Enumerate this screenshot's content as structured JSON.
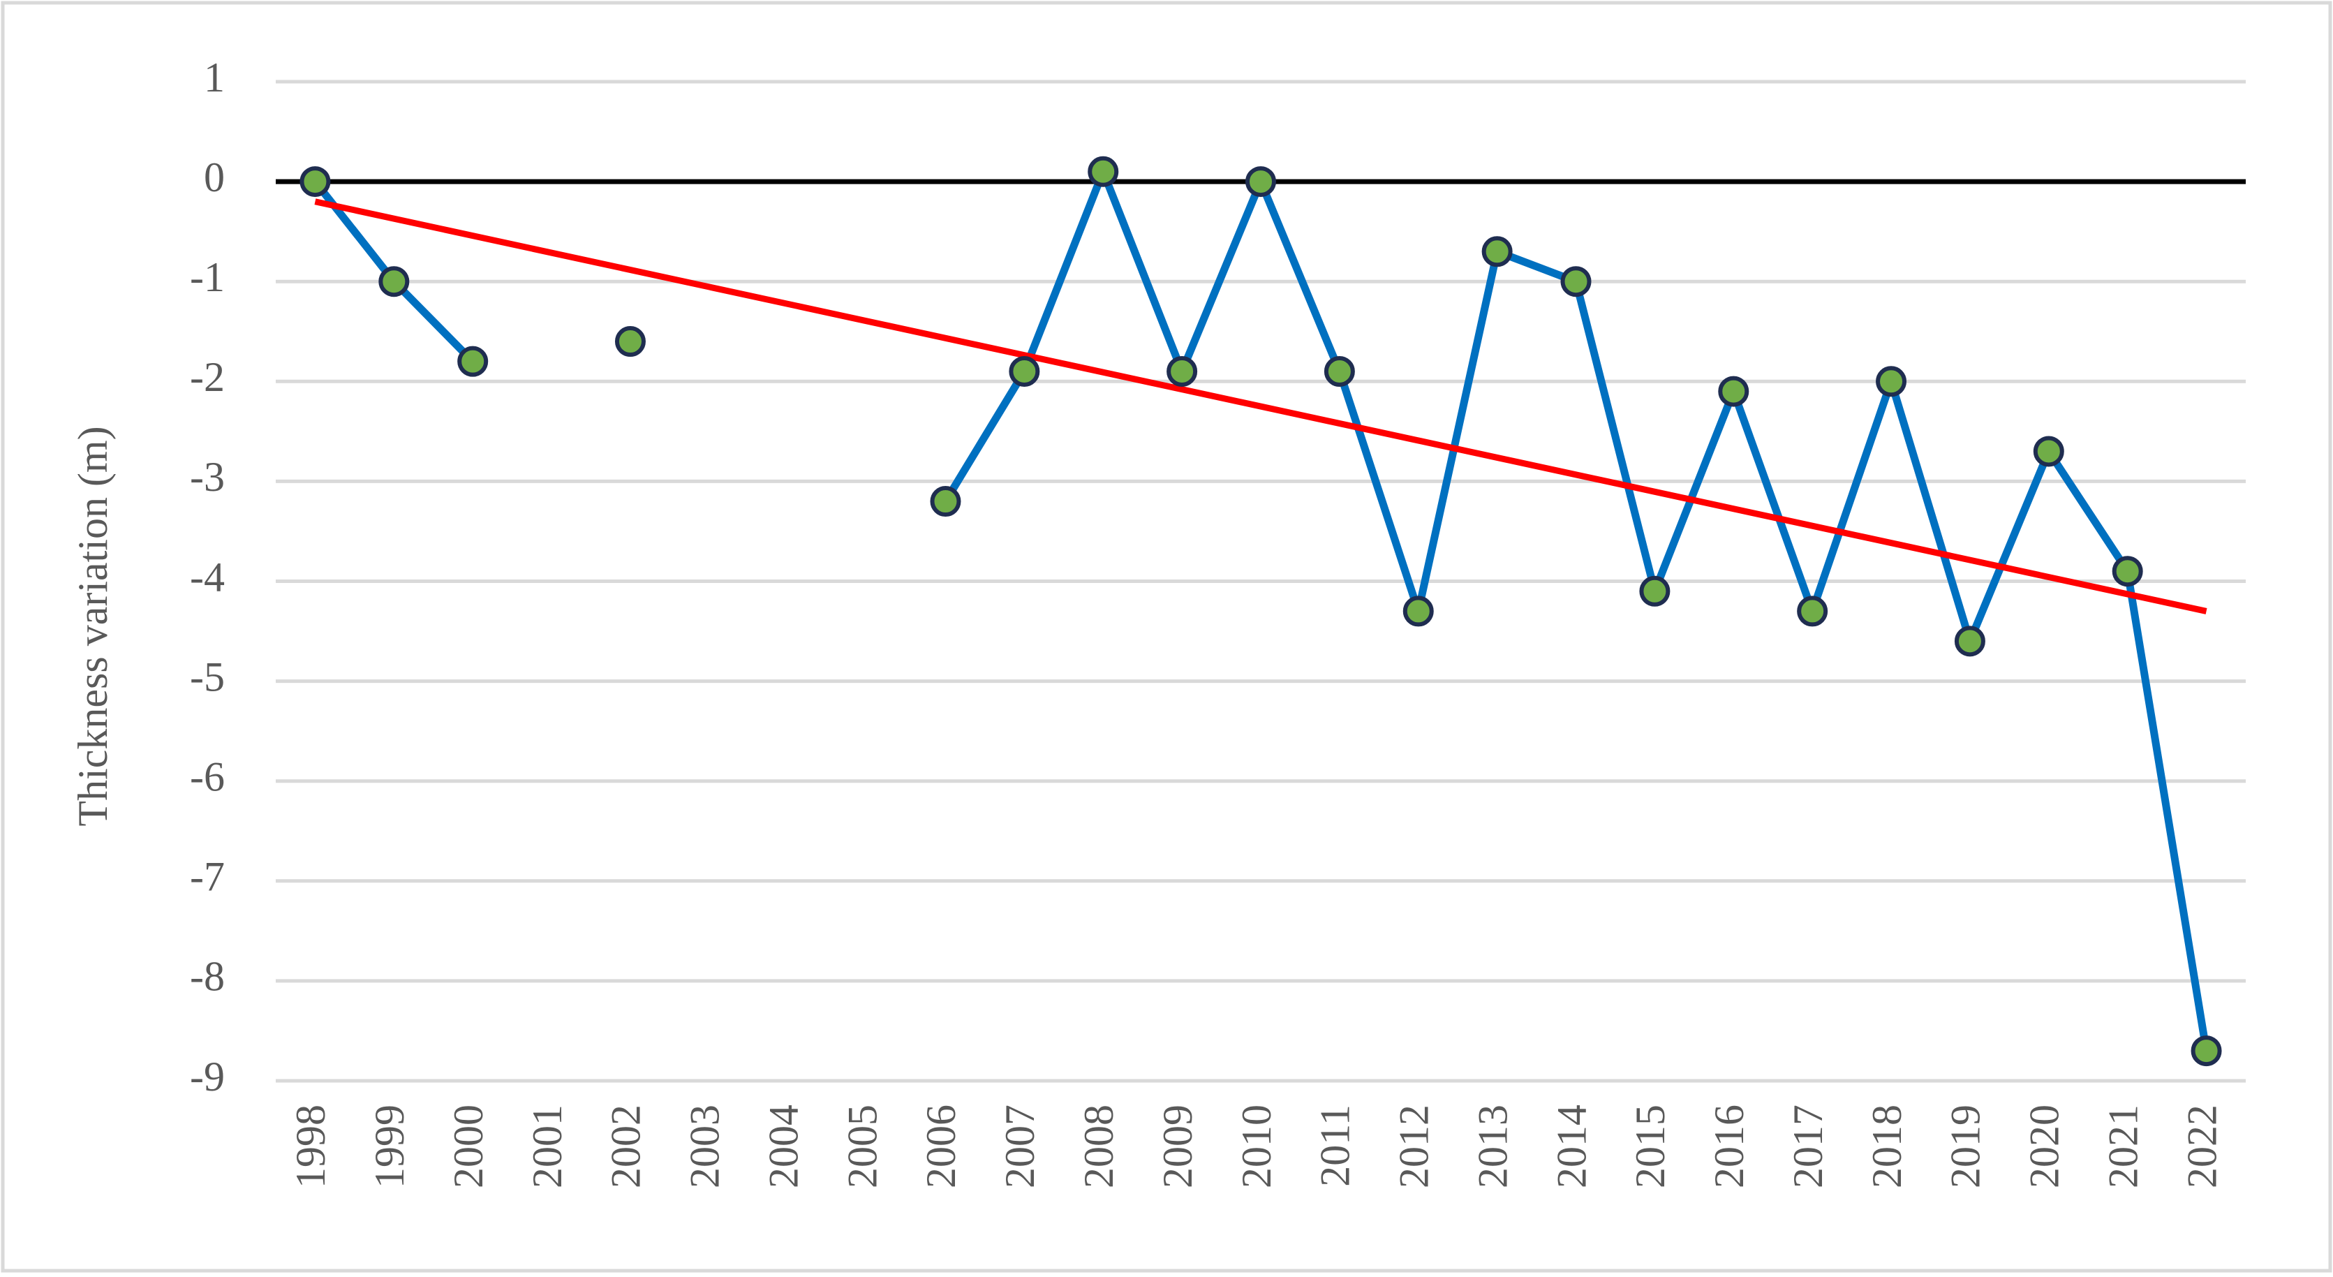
{
  "chart_data": {
    "type": "line",
    "y_label": "Thickness variation (m)",
    "categories": [
      "1998",
      "1999",
      "2000",
      "2001",
      "2002",
      "2003",
      "2004",
      "2005",
      "2006",
      "2007",
      "2008",
      "2009",
      "2010",
      "2011",
      "2012",
      "2013",
      "2014",
      "2015",
      "2016",
      "2017",
      "2018",
      "2019",
      "2020",
      "2021",
      "2022"
    ],
    "series": [
      {
        "color": "#0070c0",
        "marker_color": "#70ad47",
        "marker_edge": "#1f2d50",
        "values": [
          0,
          -1,
          -1.8,
          null,
          -1.6,
          null,
          null,
          null,
          -3.2,
          -1.9,
          0.1,
          -1.9,
          0,
          -1.9,
          -4.3,
          -0.7,
          -1.0,
          -4.1,
          -2.1,
          -4.3,
          -2.0,
          -4.6,
          -2.7,
          -3.9,
          -8.7
        ]
      }
    ],
    "trend": {
      "color": "#ff0000",
      "values": [
        -0.2,
        -4.3
      ]
    },
    "zero_line_color": "#000000",
    "ylim": [
      -9,
      1
    ],
    "yticks": [
      -9,
      -8,
      -7,
      -6,
      -5,
      -4,
      -3,
      -2,
      -1,
      0,
      1
    ],
    "grid": true
  }
}
